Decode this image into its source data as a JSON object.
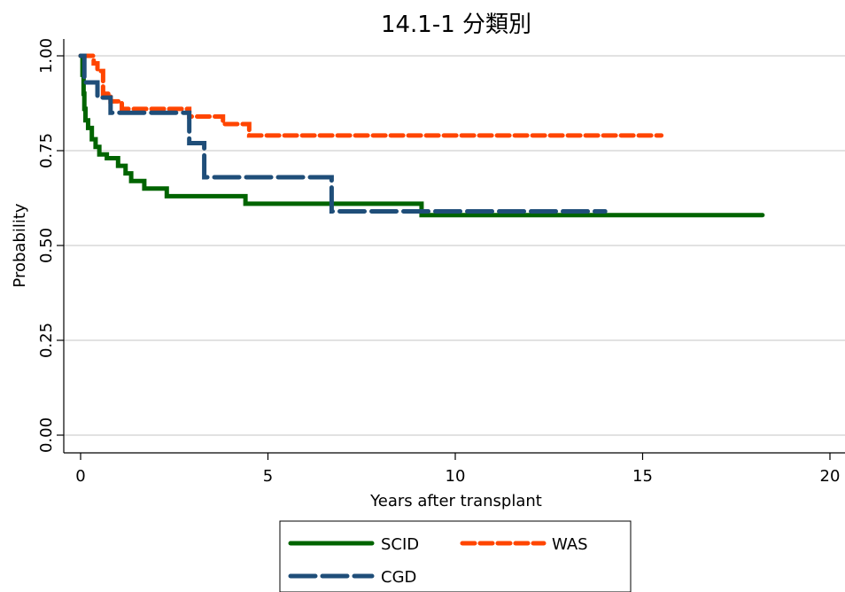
{
  "chart_data": {
    "type": "line",
    "title": "14.1-1 分類別",
    "xlabel": "Years after transplant",
    "ylabel": "Probability",
    "xlim": [
      0,
      20
    ],
    "ylim": [
      0,
      1
    ],
    "x_ticks": [
      0,
      5,
      10,
      15,
      20
    ],
    "x_tick_labels": [
      "0",
      "5",
      "10",
      "15",
      "20"
    ],
    "y_ticks": [
      0,
      0.25,
      0.5,
      0.75,
      1
    ],
    "y_tick_labels": [
      "0.00",
      "0.25",
      "0.50",
      "0.75",
      "1.00"
    ],
    "grid": "horizontal",
    "legend_position": "bottom",
    "series": [
      {
        "name": "SCID",
        "color": "#006400",
        "dash": "solid",
        "points": [
          [
            0,
            1.0
          ],
          [
            0.05,
            0.95
          ],
          [
            0.08,
            0.9
          ],
          [
            0.1,
            0.86
          ],
          [
            0.13,
            0.83
          ],
          [
            0.2,
            0.81
          ],
          [
            0.3,
            0.78
          ],
          [
            0.4,
            0.76
          ],
          [
            0.5,
            0.74
          ],
          [
            0.7,
            0.73
          ],
          [
            1.0,
            0.71
          ],
          [
            1.2,
            0.69
          ],
          [
            1.35,
            0.67
          ],
          [
            1.7,
            0.65
          ],
          [
            2.3,
            0.63
          ],
          [
            4.4,
            0.61
          ],
          [
            9.1,
            0.58
          ],
          [
            18.2,
            0.58
          ]
        ]
      },
      {
        "name": "WAS",
        "color": "#ff4500",
        "dash": "short",
        "points": [
          [
            0,
            1.0
          ],
          [
            0.35,
            0.98
          ],
          [
            0.45,
            0.96
          ],
          [
            0.6,
            0.9
          ],
          [
            0.8,
            0.88
          ],
          [
            1.1,
            0.86
          ],
          [
            2.9,
            0.84
          ],
          [
            3.8,
            0.82
          ],
          [
            4.5,
            0.79
          ],
          [
            15.5,
            0.79
          ]
        ]
      },
      {
        "name": "CGD",
        "color": "#1f4e79",
        "dash": "long",
        "points": [
          [
            0,
            1.0
          ],
          [
            0.1,
            0.93
          ],
          [
            0.45,
            0.89
          ],
          [
            0.8,
            0.85
          ],
          [
            2.9,
            0.77
          ],
          [
            3.3,
            0.68
          ],
          [
            6.7,
            0.59
          ],
          [
            14.0,
            0.59
          ]
        ]
      }
    ]
  }
}
